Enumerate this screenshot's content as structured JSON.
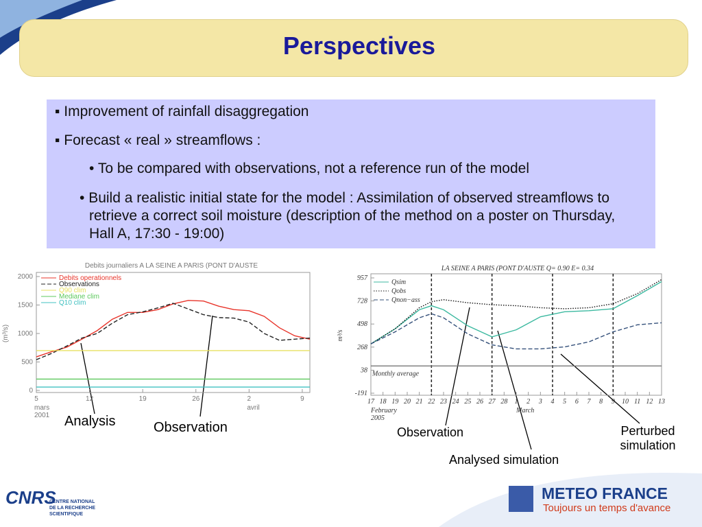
{
  "title": "Perspectives",
  "bullets": [
    "Improvement of rainfall disaggregation",
    "Forecast « real » streamflows :"
  ],
  "sub_bullets": [
    "To be compared with observations, not a reference run of the model",
    "Build a realistic initial state for the model : Assimilation of observed streamflows to retrieve a correct soil moisture (description of the method on a poster on Thursday, Hall A, 17:30 - 19:00)"
  ],
  "chart_data": [
    {
      "type": "line",
      "title": "Debits journaliers A  LA SEINE A PARIS (PONT D'AUSTE",
      "ylabel": "(m³/s)",
      "x": [
        0,
        2,
        4,
        6,
        8,
        10,
        12,
        14,
        16,
        18,
        20,
        22,
        24,
        26,
        28,
        30,
        32,
        34,
        36
      ],
      "xlim": [
        0,
        36
      ],
      "ylim": [
        0,
        2000
      ],
      "yticks": [
        0,
        500,
        1000,
        1500,
        2000
      ],
      "xticks": [
        {
          "value": 0,
          "label": "5"
        },
        {
          "value": 7,
          "label": "12"
        },
        {
          "value": 14,
          "label": "19"
        },
        {
          "value": 21,
          "label": "26"
        },
        {
          "value": 28,
          "label": "2"
        },
        {
          "value": 35,
          "label": "9"
        }
      ],
      "month_labels": [
        {
          "value": 0,
          "label": "mars"
        },
        {
          "value": 28,
          "label": "avril"
        }
      ],
      "year_label": "2001",
      "series": [
        {
          "name": "Debits operationnels",
          "color": "#e8342a",
          "style": "solid",
          "values": [
            590,
            680,
            760,
            900,
            1050,
            1250,
            1370,
            1370,
            1420,
            1520,
            1580,
            1570,
            1480,
            1420,
            1400,
            1300,
            1100,
            960,
            900
          ]
        },
        {
          "name": "Observations",
          "color": "#222222",
          "style": "dashed",
          "values": [
            540,
            650,
            780,
            920,
            1000,
            1180,
            1330,
            1380,
            1450,
            1530,
            1430,
            1330,
            1280,
            1270,
            1200,
            1000,
            880,
            900,
            920
          ]
        },
        {
          "name": "Q90 clim",
          "color": "#e8e060",
          "style": "solid",
          "values": [
            700,
            700,
            700,
            700,
            700,
            700,
            700,
            700,
            700,
            700,
            700,
            700,
            700,
            700,
            700,
            700,
            700,
            700,
            700
          ]
        },
        {
          "name": "Mediane clim",
          "color": "#5cc85c",
          "style": "solid",
          "values": [
            200,
            200,
            200,
            200,
            200,
            200,
            200,
            200,
            200,
            200,
            200,
            200,
            200,
            200,
            200,
            200,
            200,
            200,
            200
          ]
        },
        {
          "name": "Q10 clim",
          "color": "#40c0c0",
          "style": "solid",
          "values": [
            60,
            60,
            60,
            60,
            60,
            60,
            60,
            60,
            60,
            60,
            60,
            60,
            60,
            60,
            60,
            60,
            60,
            60,
            60
          ]
        }
      ]
    },
    {
      "type": "line",
      "title": "LA SEINE A PARIS (PONT D'AUSTE Q= 0.90 E=  0.34",
      "ylabel": "m³/s",
      "x": [
        0,
        2,
        4,
        5,
        6,
        8,
        10,
        12,
        14,
        16,
        18,
        20,
        22,
        24
      ],
      "xlim": [
        0,
        24
      ],
      "ylim": [
        -191,
        957
      ],
      "yticks": [
        -191,
        38,
        268,
        498,
        728,
        957
      ],
      "xticks": [
        {
          "value": 0,
          "label": "17"
        },
        {
          "value": 1,
          "label": "18"
        },
        {
          "value": 2,
          "label": "19"
        },
        {
          "value": 3,
          "label": "20"
        },
        {
          "value": 4,
          "label": "21"
        },
        {
          "value": 5,
          "label": "22"
        },
        {
          "value": 6,
          "label": "23"
        },
        {
          "value": 7,
          "label": "24"
        },
        {
          "value": 8,
          "label": "25"
        },
        {
          "value": 9,
          "label": "26"
        },
        {
          "value": 10,
          "label": "27"
        },
        {
          "value": 11,
          "label": "28"
        },
        {
          "value": 12,
          "label": "1"
        },
        {
          "value": 13,
          "label": "2"
        },
        {
          "value": 14,
          "label": "3"
        },
        {
          "value": 15,
          "label": "4"
        },
        {
          "value": 16,
          "label": "5"
        },
        {
          "value": 17,
          "label": "6"
        },
        {
          "value": 18,
          "label": "7"
        },
        {
          "value": 19,
          "label": "8"
        },
        {
          "value": 20,
          "label": "9"
        },
        {
          "value": 21,
          "label": "10"
        },
        {
          "value": 22,
          "label": "11"
        },
        {
          "value": 23,
          "label": "12"
        },
        {
          "value": 24,
          "label": "13"
        }
      ],
      "month_labels": [
        {
          "value": 0,
          "label": "February"
        },
        {
          "value": 12,
          "label": "March"
        }
      ],
      "year_label": "2005",
      "vlines": [
        5,
        10,
        15,
        20
      ],
      "series": [
        {
          "name": "Qsim",
          "color": "#3cb9a0",
          "style": "solid",
          "values": [
            300,
            450,
            640,
            680,
            640,
            480,
            370,
            440,
            570,
            620,
            630,
            650,
            780,
            920
          ]
        },
        {
          "name": "Qobs",
          "color": "#111111",
          "style": "dotted",
          "values": [
            300,
            450,
            660,
            720,
            740,
            710,
            690,
            680,
            660,
            650,
            660,
            700,
            800,
            940
          ]
        },
        {
          "name": "Qnon−ass",
          "color": "#34507a",
          "style": "dashed",
          "values": [
            300,
            420,
            560,
            600,
            560,
            400,
            290,
            250,
            250,
            270,
            320,
            420,
            490,
            510
          ]
        },
        {
          "name": "Monthly average",
          "color": "#777777",
          "style": "solid",
          "values": [
            80,
            80,
            80,
            80,
            80,
            80,
            80,
            80,
            80,
            80,
            80,
            80,
            80,
            80
          ]
        }
      ]
    }
  ],
  "annotations": [
    "Analysis",
    "Observation",
    "Observation",
    "Analysed simulation",
    "Perturbed simulation"
  ],
  "logos": {
    "cnrs": "CNRS",
    "cnrs_name": [
      "CENTRE NATIONAL",
      "DE LA RECHERCHE",
      "SCIENTIFIQUE"
    ],
    "meteo": "METEO FRANCE",
    "meteo_tagline": "Toujours un temps d'avance"
  }
}
